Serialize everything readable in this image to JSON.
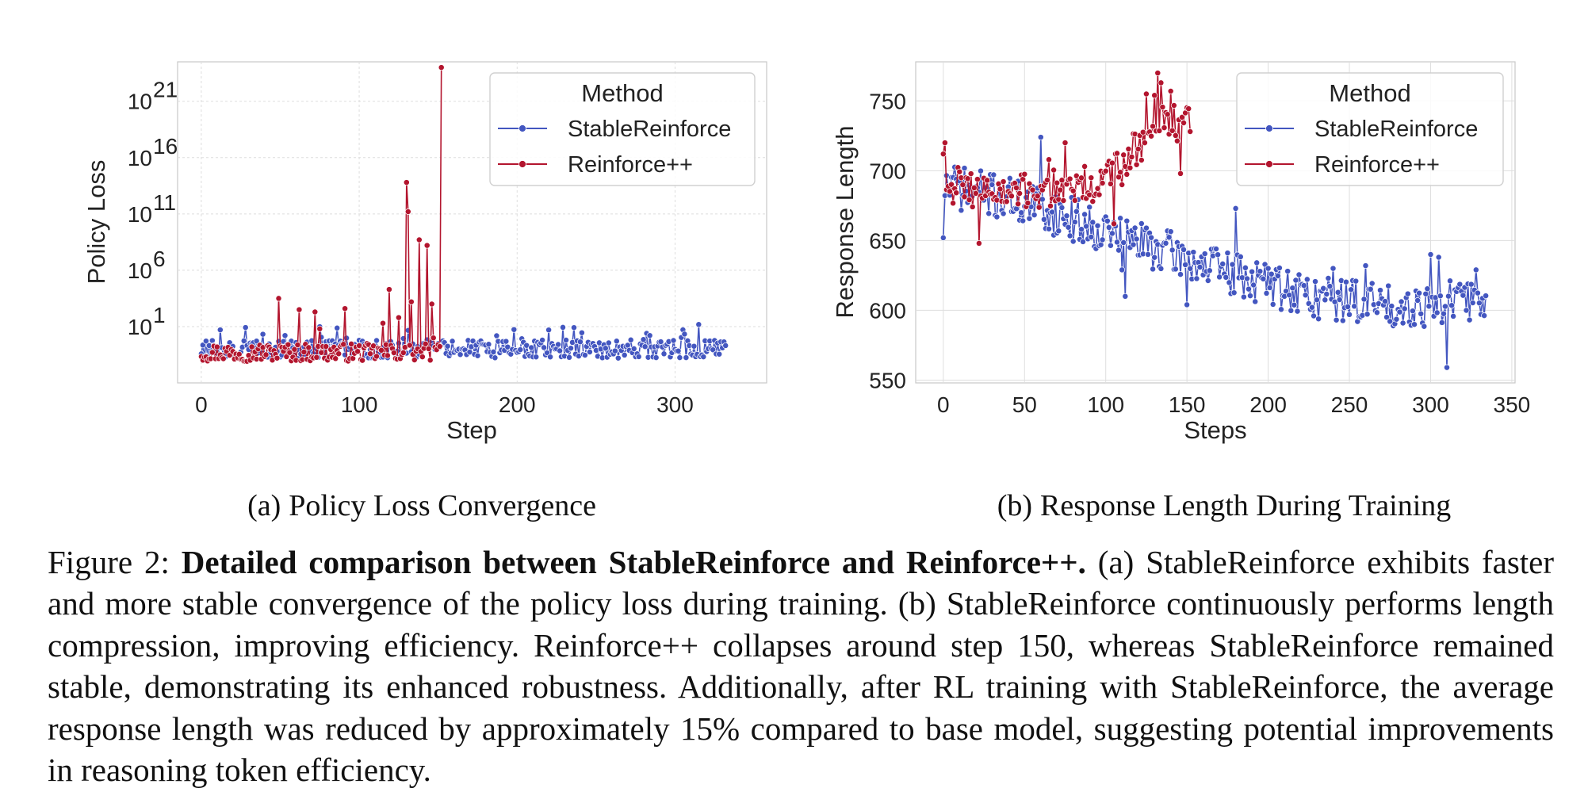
{
  "chart_data": [
    {
      "type": "line",
      "id": "a",
      "subcaption_label": "(a)",
      "subcaption_text": "Policy Loss Convergence",
      "xlabel": "Step",
      "ylabel": "Policy Loss",
      "yscale": "log",
      "xlim": [
        -15,
        358
      ],
      "ylim_log10": [
        -4,
        24.5
      ],
      "xticks": [
        0,
        100,
        200,
        300
      ],
      "yticks_log10": [
        1,
        6,
        11,
        16,
        21
      ],
      "ytick_base": "10",
      "grid": true,
      "legend": {
        "title": "Method",
        "position": "top-right"
      },
      "series": [
        {
          "name": "StableReinforce",
          "color": "#4356c0",
          "x_start": 0,
          "x_end": 332,
          "n": 333,
          "log10_center": -1,
          "log10_spread": 0.8,
          "log10_max": 1.2
        },
        {
          "name": "Reinforce++",
          "color": "#b3152e",
          "x_start": 0,
          "x_end": 152,
          "n": 153,
          "log10_center": -1.3,
          "log10_spread": 0.8,
          "log10_spikes": [
            [
              49,
              3.5
            ],
            [
              62,
              2.5
            ],
            [
              72,
              2.3
            ],
            [
              75,
              0.8
            ],
            [
              91,
              2.6
            ],
            [
              115,
              1.3
            ],
            [
              119,
              4.3
            ],
            [
              125,
              1.8
            ],
            [
              130,
              13.8
            ],
            [
              131,
              11.2
            ],
            [
              133,
              3.2
            ],
            [
              138,
              8.7
            ],
            [
              143,
              8.2
            ],
            [
              146,
              3
            ],
            [
              147,
              0
            ],
            [
              152,
              24
            ]
          ]
        }
      ]
    },
    {
      "type": "line",
      "id": "b",
      "subcaption_label": "(b)",
      "subcaption_text": "Response Length During Training",
      "xlabel": "Steps",
      "ylabel": "Response Length",
      "xlim": [
        -17,
        352
      ],
      "ylim": [
        548,
        778
      ],
      "xticks": [
        0,
        50,
        100,
        150,
        200,
        250,
        300,
        350
      ],
      "yticks": [
        550,
        600,
        650,
        700,
        750
      ],
      "grid": true,
      "legend": {
        "title": "Method",
        "position": "top-right"
      },
      "series": [
        {
          "name": "StableReinforce",
          "color": "#4356c0",
          "x_start": 0,
          "x_end": 334,
          "n": 335,
          "trend": [
            [
              0,
              690
            ],
            [
              40,
              680
            ],
            [
              80,
              665
            ],
            [
              130,
              645
            ],
            [
              180,
              625
            ],
            [
              230,
              610
            ],
            [
              280,
              603
            ],
            [
              334,
              608
            ]
          ],
          "noise": 16,
          "pinned": [
            [
              0,
              652
            ],
            [
              30,
              690
            ],
            [
              60,
              724
            ],
            [
              110,
              629
            ],
            [
              112,
              610
            ],
            [
              150,
              604
            ],
            [
              180,
              673
            ],
            [
              200,
              630
            ],
            [
              210,
              610
            ],
            [
              228,
              596
            ],
            [
              240,
              630
            ],
            [
              260,
              632
            ],
            [
              300,
              640
            ],
            [
              305,
              638
            ],
            [
              310,
              559
            ],
            [
              328,
              629
            ]
          ]
        },
        {
          "name": "Reinforce++",
          "color": "#b3152e",
          "x_start": 0,
          "x_end": 152,
          "n": 153,
          "trend": [
            [
              0,
              692
            ],
            [
              40,
              682
            ],
            [
              70,
              688
            ],
            [
              100,
              692
            ],
            [
              110,
              705
            ],
            [
              125,
              725
            ],
            [
              140,
              735
            ],
            [
              152,
              735
            ]
          ],
          "noise": 14,
          "pinned": [
            [
              0,
              712
            ],
            [
              1,
              720
            ],
            [
              22,
              648
            ],
            [
              65,
              708
            ],
            [
              75,
              720
            ],
            [
              105,
              662
            ],
            [
              110,
              690
            ],
            [
              125,
              755
            ],
            [
              130,
              754
            ],
            [
              132,
              770
            ],
            [
              134,
              763
            ],
            [
              140,
              757
            ],
            [
              146,
              698
            ],
            [
              152,
              728
            ]
          ]
        }
      ]
    }
  ],
  "caption": {
    "prefix": "Figure 2: ",
    "bold": "Detailed comparison between StableReinforce and Reinforce++.",
    "rest": " (a) StableReinforce exhibits faster and more stable convergence of the policy loss during training. (b) StableReinforce continuously performs length compression, improving efficiency. Reinforce++ collapses around step 150, whereas StableReinforce remained stable, demonstrating its enhanced robustness. Additionally, after RL training with StableReinforce, the average response length was reduced by approximately 15% compared to base model, suggesting potential improvements in reasoning token efficiency."
  }
}
